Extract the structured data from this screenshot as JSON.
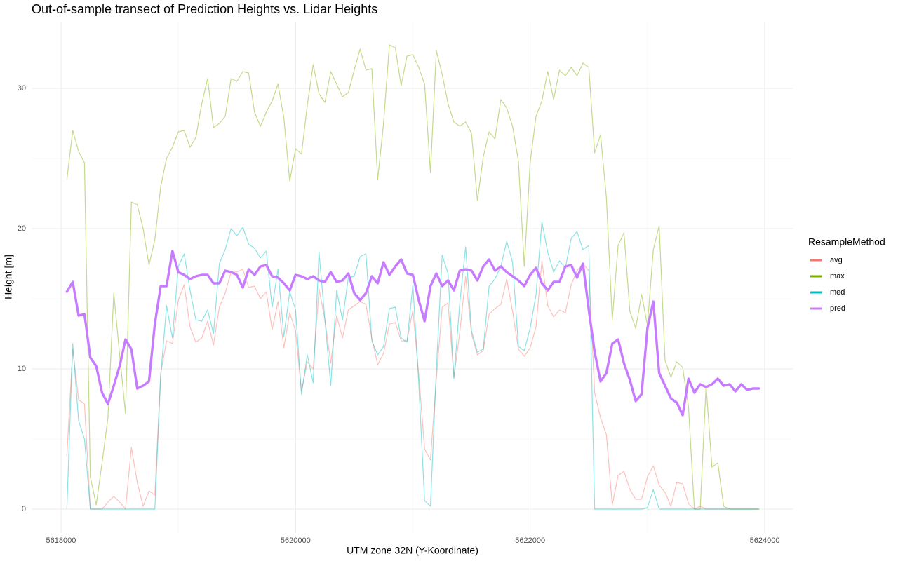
{
  "chart_data": {
    "type": "line",
    "title": "Out-of-sample transect of Prediction Heights vs. Lidar Heights",
    "xlabel": "UTM zone 32N (Y-Koordinate)",
    "ylabel": "Height [m]",
    "legend_title": "ResampleMethod",
    "legend": "right",
    "grid": true,
    "xlim": [
      5617749,
      5624239
    ],
    "ylim": [
      -1.7,
      34.7
    ],
    "xticks": [
      5618000,
      5620000,
      5622000,
      5624000
    ],
    "yticks": [
      0,
      10,
      20,
      30
    ],
    "xminor": [
      5619000,
      5621000,
      5623000
    ],
    "yminor": [
      5,
      15,
      25
    ],
    "x": [
      5618050,
      5618100,
      5618150,
      5618200,
      5618250,
      5618300,
      5618350,
      5618400,
      5618450,
      5618500,
      5618550,
      5618600,
      5618650,
      5618700,
      5618750,
      5618800,
      5618850,
      5618900,
      5618950,
      5619000,
      5619050,
      5619100,
      5619150,
      5619200,
      5619250,
      5619300,
      5619350,
      5619400,
      5619450,
      5619500,
      5619550,
      5619600,
      5619650,
      5619700,
      5619750,
      5619800,
      5619850,
      5619900,
      5619950,
      5620000,
      5620050,
      5620100,
      5620150,
      5620200,
      5620250,
      5620300,
      5620350,
      5620400,
      5620450,
      5620500,
      5620550,
      5620600,
      5620650,
      5620700,
      5620750,
      5620800,
      5620850,
      5620900,
      5620950,
      5621000,
      5621050,
      5621100,
      5621150,
      5621200,
      5621250,
      5621300,
      5621350,
      5621400,
      5621450,
      5621500,
      5621550,
      5621600,
      5621650,
      5621700,
      5621750,
      5621800,
      5621850,
      5621900,
      5621950,
      5622000,
      5622050,
      5622100,
      5622150,
      5622200,
      5622250,
      5622300,
      5622350,
      5622400,
      5622450,
      5622500,
      5622550,
      5622600,
      5622650,
      5622700,
      5622750,
      5622800,
      5622850,
      5622900,
      5622950,
      5623000,
      5623050,
      5623100,
      5623150,
      5623200,
      5623250,
      5623300,
      5623350,
      5623400,
      5623450,
      5623500,
      5623550,
      5623600,
      5623650,
      5623700,
      5623750,
      5623800,
      5623850,
      5623900,
      5623950
    ],
    "series": [
      {
        "name": "avg",
        "color": "#F8766D",
        "opacity": 0.45,
        "values": [
          3.8,
          11.4,
          7.8,
          7.5,
          0,
          0,
          0,
          0.5,
          0.9,
          0.5,
          0,
          4.4,
          1.9,
          0.2,
          1.3,
          1.0,
          9.7,
          12.0,
          11.8,
          14.9,
          16.0,
          13.0,
          11.9,
          12.2,
          13.4,
          11.7,
          14.4,
          15.4,
          16.9,
          16.9,
          17.1,
          15.8,
          15.9,
          15.0,
          15.5,
          12.8,
          14.8,
          11.5,
          14.0,
          12.7,
          8.4,
          10.5,
          10.0,
          15.7,
          13.5,
          10.4,
          13.8,
          12.2,
          14.2,
          14.5,
          14.8,
          14.6,
          12.2,
          10.3,
          11.1,
          13.2,
          13.3,
          12.0,
          12.0,
          14.2,
          9.6,
          4.3,
          3.5,
          9.3,
          14.4,
          14.7,
          9.4,
          12.6,
          16.6,
          12.5,
          11.0,
          11.3,
          13.9,
          14.3,
          14.6,
          16.4,
          14.1,
          11.4,
          10.9,
          11.5,
          13.0,
          17.7,
          14.5,
          13.7,
          14.2,
          14.0,
          16.0,
          17.0,
          17.5,
          17.0,
          8.3,
          6.5,
          5.3,
          0.3,
          2.4,
          2.7,
          1.4,
          0.7,
          0.7,
          2.3,
          3.1,
          1.7,
          1.2,
          0.2,
          1.9,
          1.8,
          0.4,
          0,
          0.2,
          0,
          0,
          0,
          0,
          0,
          0,
          0,
          0,
          0,
          0
        ]
      },
      {
        "name": "max",
        "color": "#7CAE00",
        "opacity": 0.45,
        "values": [
          23.5,
          27.0,
          25.5,
          24.7,
          2.3,
          0.3,
          3.3,
          6.5,
          15.4,
          11.0,
          6.8,
          21.9,
          21.7,
          20.0,
          17.4,
          19.2,
          23.0,
          25.0,
          25.8,
          26.9,
          27.0,
          25.8,
          26.5,
          28.9,
          30.7,
          27.2,
          27.5,
          28.0,
          30.7,
          30.5,
          31.2,
          31.1,
          28.3,
          27.3,
          28.3,
          29.1,
          30.3,
          27.9,
          23.4,
          25.7,
          25.3,
          28.8,
          31.7,
          29.6,
          29.0,
          31.2,
          30.3,
          29.4,
          29.7,
          31.3,
          32.8,
          31.3,
          31.4,
          23.5,
          27.5,
          33.1,
          32.9,
          30.2,
          32.3,
          32.4,
          31.5,
          30.3,
          24.0,
          32.7,
          31.0,
          28.9,
          27.6,
          27.3,
          27.6,
          26.8,
          22.0,
          25.1,
          26.9,
          26.4,
          29.2,
          28.6,
          27.3,
          24.8,
          17.3,
          24.7,
          28.0,
          29.1,
          31.2,
          29.2,
          31.3,
          30.9,
          31.5,
          30.9,
          31.8,
          31.5,
          25.4,
          26.7,
          22.2,
          13.5,
          18.8,
          19.7,
          14.1,
          12.9,
          15.3,
          13.1,
          18.5,
          20.2,
          10.6,
          9.4,
          10.5,
          10.1,
          7.3,
          0,
          0,
          8.8,
          3.0,
          3.3,
          0.2,
          0,
          0,
          0,
          0,
          0,
          0
        ]
      },
      {
        "name": "med",
        "color": "#00BFC4",
        "opacity": 0.45,
        "values": [
          0,
          11.8,
          6.3,
          5.0,
          0,
          0,
          0,
          0,
          0,
          0,
          0,
          0,
          0,
          0,
          0,
          0,
          9.5,
          14.5,
          12.2,
          17.3,
          18.2,
          15.6,
          13.5,
          13.4,
          14.2,
          12.5,
          17.5,
          18.5,
          20.0,
          19.5,
          20.1,
          18.9,
          18.6,
          17.9,
          18.4,
          14.4,
          17.1,
          12.3,
          15.5,
          14.2,
          8.2,
          11.0,
          9.0,
          18.3,
          13.5,
          8.8,
          15.6,
          13.5,
          16.5,
          16.6,
          18.0,
          18.2,
          12.0,
          11.0,
          11.6,
          14.3,
          14.4,
          12.2,
          11.9,
          16.0,
          9.0,
          0.6,
          0.2,
          9.9,
          18.1,
          16.8,
          9.3,
          14.7,
          18.7,
          12.7,
          11.2,
          11.4,
          15.9,
          16.4,
          17.3,
          19.1,
          17.6,
          11.6,
          11.3,
          12.9,
          15.3,
          20.5,
          18.3,
          16.9,
          17.7,
          17.2,
          19.3,
          19.8,
          18.5,
          18.8,
          0,
          0,
          0,
          0,
          0,
          0,
          0,
          0,
          0,
          0.1,
          1.4,
          0,
          0,
          0,
          0,
          0,
          0,
          0,
          0,
          0,
          0,
          0,
          0,
          0,
          0,
          0,
          0,
          0,
          0
        ]
      },
      {
        "name": "pred",
        "color": "#C77CFF",
        "opacity": 1,
        "values": [
          15.5,
          16.2,
          13.8,
          13.9,
          10.8,
          10.2,
          8.3,
          7.5,
          8.8,
          10.2,
          12.1,
          11.4,
          8.6,
          8.8,
          9.1,
          13.2,
          15.9,
          15.9,
          18.4,
          16.9,
          16.7,
          16.4,
          16.6,
          16.7,
          16.7,
          16.1,
          16.1,
          17.0,
          16.9,
          16.7,
          15.8,
          17.1,
          16.7,
          17.3,
          17.4,
          16.6,
          16.5,
          16.1,
          15.6,
          16.7,
          16.6,
          16.4,
          16.6,
          16.3,
          16.2,
          16.9,
          16.2,
          16.3,
          16.8,
          15.4,
          14.9,
          15.4,
          16.6,
          16.1,
          17.6,
          16.7,
          17.3,
          17.8,
          16.8,
          16.7,
          14.9,
          13.4,
          15.9,
          16.8,
          15.9,
          16.3,
          15.6,
          17.0,
          17.1,
          17.0,
          16.3,
          17.3,
          17.8,
          17.0,
          17.3,
          16.9,
          16.6,
          16.3,
          15.9,
          16.7,
          17.2,
          16.1,
          15.6,
          16.2,
          16.2,
          17.3,
          17.4,
          16.5,
          17.5,
          14.2,
          11.2,
          9.1,
          9.7,
          11.8,
          12.1,
          10.4,
          9.2,
          7.7,
          8.2,
          12.9,
          14.8,
          9.7,
          8.8,
          7.9,
          7.6,
          6.7,
          9.3,
          8.3,
          8.9,
          8.7,
          8.9,
          9.3,
          8.8,
          8.9,
          8.4,
          8.9,
          8.5,
          8.6,
          8.6
        ]
      }
    ]
  }
}
